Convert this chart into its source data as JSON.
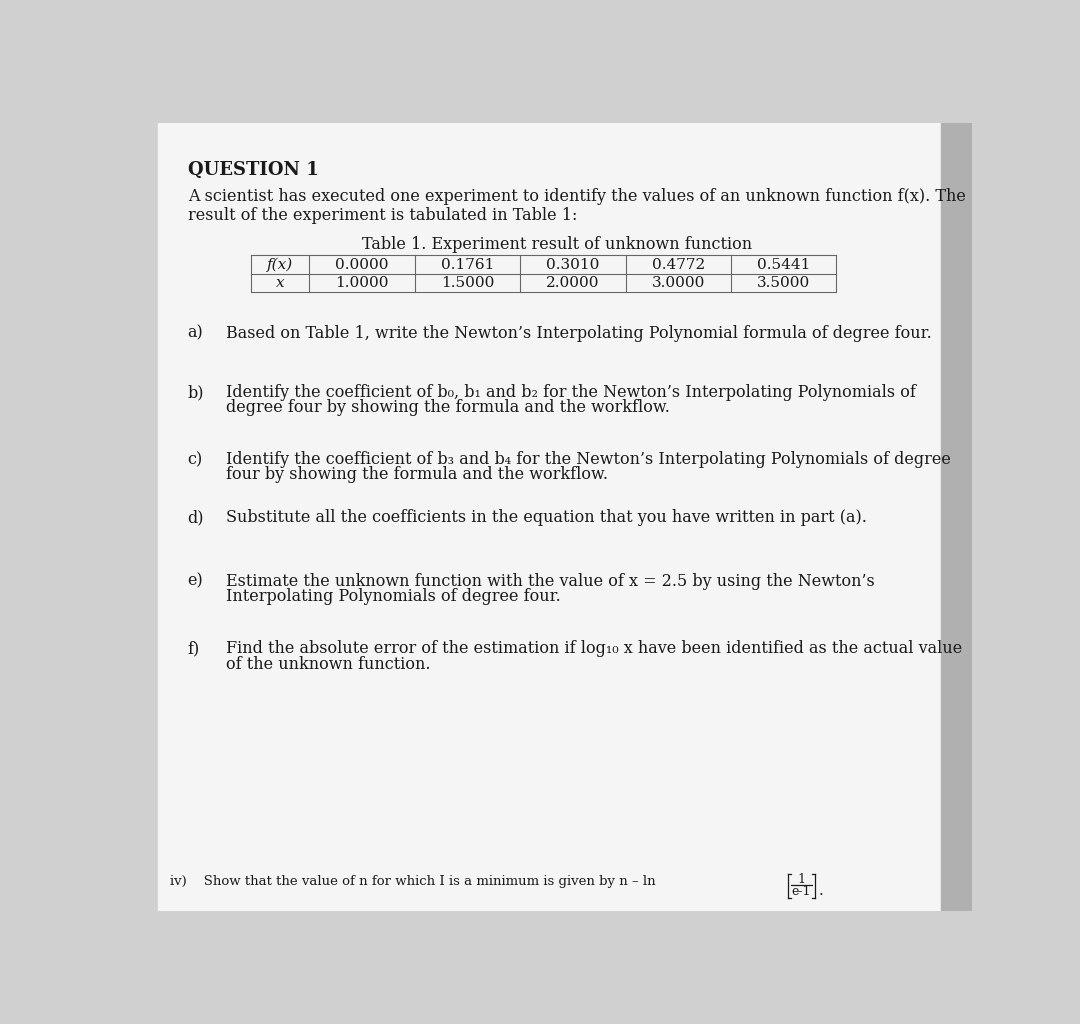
{
  "title": "QUESTION 1",
  "intro_line1": "A scientist has executed one experiment to identify the values of an unknown function f(x). The",
  "intro_line2": "result of the experiment is tabulated in Table 1:",
  "table_title": "Table 1. Experiment result of unknown function",
  "table_header_fx": "f(x)",
  "table_header_x": "x",
  "table_values_fx": [
    "0.0000",
    "0.1761",
    "0.3010",
    "0.4772",
    "0.5441"
  ],
  "table_values_x": [
    "1.0000",
    "1.5000",
    "2.0000",
    "3.0000",
    "3.5000"
  ],
  "parts": [
    {
      "label": "a)",
      "text": "Based on Table 1, write the Newton’s Interpolating Polynomial formula of degree four."
    },
    {
      "label": "b)",
      "text_line1": "Identify the coefficient of b₀, b₁ and b₂ for the Newton’s Interpolating Polynomials of",
      "text_line2": "degree four by showing the formula and the workflow."
    },
    {
      "label": "c)",
      "text_line1": "Identify the coefficient of b₃ and b₄ for the Newton’s Interpolating Polynomials of degree",
      "text_line2": "four by showing the formula and the workflow."
    },
    {
      "label": "d)",
      "text": "Substitute all the coefficients in the equation that you have written in part (a)."
    },
    {
      "label": "e)",
      "text_line1": "Estimate the unknown function with the value of x = 2.5 by using the Newton’s",
      "text_line2": "Interpolating Polynomials of degree four."
    },
    {
      "label": "f)",
      "text_line1": "Find the absolute error of the estimation if log₁₀ x have been identified as the actual value",
      "text_line2": "of the unknown function."
    }
  ],
  "footer_text": "iv)    Show that the value of n for which I is a minimum is given by n – ln",
  "bg_color": "#d0d0d0",
  "page_color": "#f5f5f5",
  "text_color": "#1a1a1a"
}
